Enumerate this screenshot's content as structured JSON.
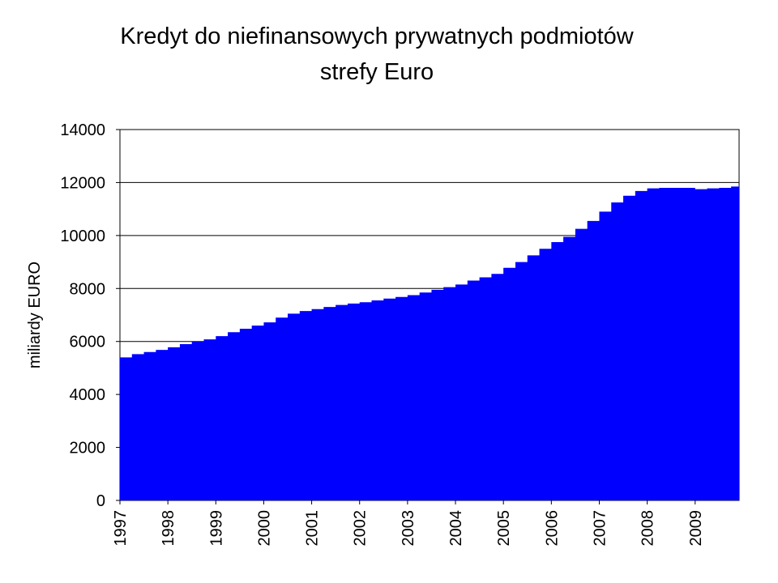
{
  "chart_data": {
    "type": "area",
    "title_lines": [
      "Kredyt do niefinansowych prywatnych podmiotów",
      "strefy Euro"
    ],
    "ylabel": "miliardy EURO",
    "xlabel": "",
    "ylim": [
      0,
      14000
    ],
    "yticks": [
      "0",
      "2000",
      "4000",
      "6000",
      "8000",
      "10000",
      "12000",
      "14000"
    ],
    "xticks": [
      "1997",
      "1998",
      "1999",
      "2000",
      "2001",
      "2002",
      "2003",
      "2004",
      "2005",
      "2006",
      "2007",
      "2008",
      "2009"
    ],
    "x_range": [
      1997,
      2009.917
    ],
    "grid": true,
    "legend": "none",
    "color": "#0000FF",
    "series": [
      {
        "x": [
          1997.0,
          1997.25,
          1997.5,
          1997.75,
          1998.0,
          1998.25,
          1998.5,
          1998.75,
          1999.0,
          1999.25,
          1999.5,
          1999.75,
          2000.0,
          2000.25,
          2000.5,
          2000.75,
          2001.0,
          2001.25,
          2001.5,
          2001.75,
          2002.0,
          2002.25,
          2002.5,
          2002.75,
          2003.0,
          2003.25,
          2003.5,
          2003.75,
          2004.0,
          2004.25,
          2004.5,
          2004.75,
          2005.0,
          2005.25,
          2005.5,
          2005.75,
          2006.0,
          2006.25,
          2006.5,
          2006.75,
          2007.0,
          2007.25,
          2007.5,
          2007.75,
          2008.0,
          2008.25,
          2008.5,
          2008.75,
          2009.0,
          2009.25,
          2009.5,
          2009.75,
          2009.917
        ],
        "values": [
          5400,
          5520,
          5600,
          5680,
          5780,
          5900,
          6000,
          6080,
          6200,
          6350,
          6480,
          6600,
          6720,
          6900,
          7050,
          7150,
          7220,
          7300,
          7380,
          7430,
          7480,
          7550,
          7620,
          7680,
          7750,
          7850,
          7950,
          8050,
          8150,
          8300,
          8420,
          8550,
          8780,
          9000,
          9250,
          9500,
          9750,
          9950,
          10250,
          10550,
          10900,
          11250,
          11500,
          11680,
          11780,
          11800,
          11800,
          11800,
          11750,
          11780,
          11800,
          11850,
          12030
        ]
      }
    ]
  }
}
